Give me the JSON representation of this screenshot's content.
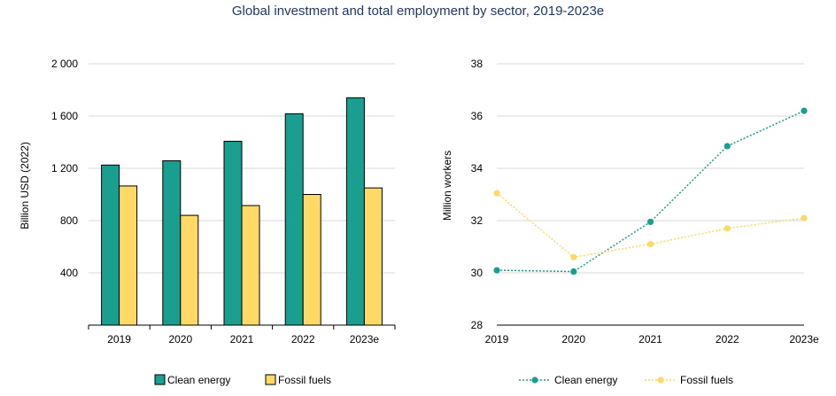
{
  "title": "Global investment and total employment by sector, 2019-2023e",
  "colors": {
    "clean": "#1a9e8f",
    "fossil": "#ffd966",
    "grid": "#d9d9d9",
    "title": "#1f3864"
  },
  "chart_data": [
    {
      "type": "bar",
      "categories": [
        "2019",
        "2020",
        "2021",
        "2022",
        "2023e"
      ],
      "series": [
        {
          "name": "Clean energy",
          "values": [
            1225,
            1258,
            1407,
            1617,
            1740
          ]
        },
        {
          "name": "Fossil fuels",
          "values": [
            1065,
            840,
            915,
            1000,
            1050
          ]
        }
      ],
      "ylabel": "Billion USD (2022)",
      "ylim": [
        0,
        2000
      ],
      "yticks": [
        400,
        800,
        1200,
        1600,
        2000
      ],
      "ytick_labels": [
        "400",
        "800",
        "1 200",
        "1 600",
        "2 000"
      ],
      "grid": true,
      "legend": "bottom"
    },
    {
      "type": "line",
      "x": [
        "2019",
        "2020",
        "2021",
        "2022",
        "2023e"
      ],
      "series": [
        {
          "name": "Clean energy",
          "values": [
            30.1,
            30.05,
            31.95,
            34.85,
            36.2
          ]
        },
        {
          "name": "Fossil fuels",
          "values": [
            33.05,
            30.6,
            31.1,
            31.7,
            32.1
          ]
        }
      ],
      "ylabel": "Million workers",
      "ylim": [
        28,
        38
      ],
      "yticks": [
        28,
        30,
        32,
        34,
        36,
        38
      ],
      "ytick_labels": [
        "28",
        "30",
        "32",
        "34",
        "36",
        "38"
      ],
      "grid": true,
      "legend": "bottom"
    }
  ]
}
